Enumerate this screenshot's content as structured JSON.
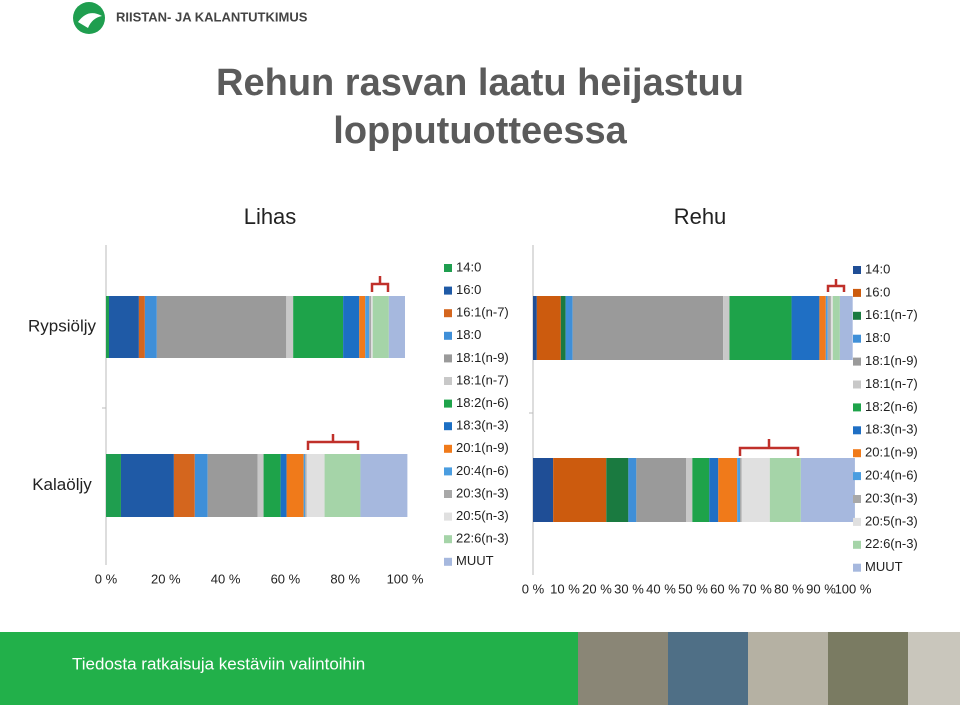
{
  "header": {
    "org": "RIISTAN- JA KALANTUTKIMUS"
  },
  "slide_title": [
    "Rehun rasvan laatu heijastuu",
    "lopputuotteessa"
  ],
  "footer": "Tiedosta ratkaisuja kestäviin valintoihin",
  "chart_data": [
    {
      "type": "bar",
      "orientation": "horizontal",
      "stacked": true,
      "title": "Lihas",
      "categories": [
        "Rypsiöljy",
        "Kalaöljy"
      ],
      "xlim": [
        0,
        100
      ],
      "xticks": [
        {
          "value": 0,
          "label": "0 %"
        },
        {
          "value": 20,
          "label": "20 %"
        },
        {
          "value": 40,
          "label": "40 %"
        },
        {
          "value": 60,
          "label": "60 %"
        },
        {
          "value": 80,
          "label": "80 %"
        },
        {
          "value": 100,
          "label": "100 %"
        }
      ],
      "series": [
        {
          "name": "14:0",
          "color": "#1f9e4f",
          "values": [
            1,
            5
          ]
        },
        {
          "name": "16:0",
          "color": "#1f5aa6",
          "values": [
            10,
            17.7
          ]
        },
        {
          "name": "16:1(n-7)",
          "color": "#d4661e",
          "values": [
            2,
            7
          ]
        },
        {
          "name": "18:0",
          "color": "#3f8fd8",
          "values": [
            4,
            4.3
          ]
        },
        {
          "name": "18:1(n-9)",
          "color": "#9a9a9a",
          "values": [
            43.3,
            16.7
          ]
        },
        {
          "name": "18:1(n-7)",
          "color": "#c8c8c8",
          "values": [
            2.3,
            2
          ]
        },
        {
          "name": "18:2(n-6)",
          "color": "#1ea34a",
          "values": [
            16.7,
            5.7
          ]
        },
        {
          "name": "18:3(n-3)",
          "color": "#1c6fc4",
          "values": [
            5.4,
            2
          ]
        },
        {
          "name": "20:1(n-9)",
          "color": "#f07a1a",
          "values": [
            2,
            5.7
          ]
        },
        {
          "name": "20:4(n-6)",
          "color": "#4a9de0",
          "values": [
            1.3,
            0.5
          ]
        },
        {
          "name": "20:3(n-3)",
          "color": "#a8a8a8",
          "values": [
            0.7,
            0.5
          ]
        },
        {
          "name": "20:5(n-3)",
          "color": "#e0e0e0",
          "values": [
            0.5,
            6
          ]
        },
        {
          "name": "22:6(n-3)",
          "color": "#a5d4a8",
          "values": [
            5.4,
            12
          ]
        },
        {
          "name": "MUUT",
          "color": "#a6b8de",
          "values": [
            5.4,
            15.7
          ]
        }
      ]
    },
    {
      "type": "bar",
      "orientation": "horizontal",
      "stacked": true,
      "title": "Rehu",
      "categories": [
        null,
        null
      ],
      "xlim": [
        0,
        100
      ],
      "xticks": [
        {
          "value": 0,
          "label": "0 %"
        },
        {
          "value": 10,
          "label": "10 %"
        },
        {
          "value": 20,
          "label": "20 %"
        },
        {
          "value": 30,
          "label": "30 %"
        },
        {
          "value": 40,
          "label": "40 %"
        },
        {
          "value": 50,
          "label": "50 %"
        },
        {
          "value": 60,
          "label": "60 %"
        },
        {
          "value": 70,
          "label": "70 %"
        },
        {
          "value": 80,
          "label": "80 %"
        },
        {
          "value": 90,
          "label": "90 %"
        },
        {
          "value": 100,
          "label": "100 %"
        }
      ],
      "series": [
        {
          "name": "14:0",
          "color": "#1f4e96",
          "values": [
            1.2,
            6.3
          ]
        },
        {
          "name": "16:0",
          "color": "#cc5b0e",
          "values": [
            7.5,
            16.6
          ]
        },
        {
          "name": "16:1(n-7)",
          "color": "#1a7a40",
          "values": [
            1.5,
            6.9
          ]
        },
        {
          "name": "18:0",
          "color": "#3f8fd8",
          "values": [
            2.2,
            2.5
          ]
        },
        {
          "name": "18:1(n-9)",
          "color": "#9a9a9a",
          "values": [
            47,
            15.6
          ]
        },
        {
          "name": "18:1(n-7)",
          "color": "#c8c8c8",
          "values": [
            2,
            1.9
          ]
        },
        {
          "name": "18:2(n-6)",
          "color": "#1ea34a",
          "values": [
            19.4,
            5.3
          ]
        },
        {
          "name": "18:3(n-3)",
          "color": "#1f6fc4",
          "values": [
            8.7,
            2.8
          ]
        },
        {
          "name": "20:1(n-9)",
          "color": "#f07a1a",
          "values": [
            2,
            5.9
          ]
        },
        {
          "name": "20:4(n-6)",
          "color": "#4a9de0",
          "values": [
            0.6,
            0.9
          ]
        },
        {
          "name": "20:3(n-3)",
          "color": "#a8a8a8",
          "values": [
            1,
            0.5
          ]
        },
        {
          "name": "20:5(n-3)",
          "color": "#e0e0e0",
          "values": [
            0.6,
            8.8
          ]
        },
        {
          "name": "22:6(n-3)",
          "color": "#a5d4a8",
          "values": [
            2.2,
            9.7
          ]
        },
        {
          "name": "MUUT",
          "color": "#a6b8de",
          "values": [
            4,
            16.9
          ]
        }
      ]
    }
  ]
}
